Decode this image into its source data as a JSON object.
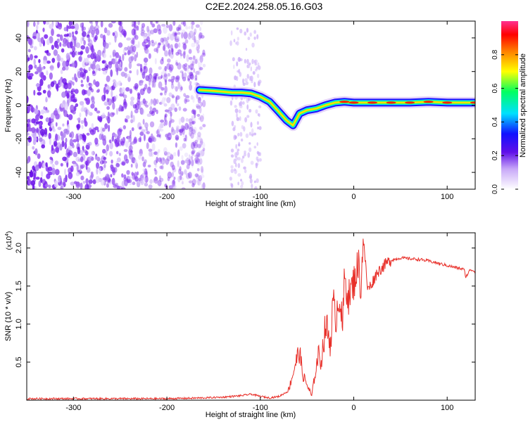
{
  "title": "C2E2.2024.258.05.16.G03",
  "chart_data": [
    {
      "type": "heatmap",
      "name": "spectrogram",
      "xlabel": "Height of straight line (km)",
      "ylabel": "Frequency (Hz)",
      "xlim": [
        -350,
        130
      ],
      "ylim": [
        -50,
        50
      ],
      "xticks": [
        -300,
        -200,
        -100,
        0,
        100
      ],
      "yticks": [
        -40,
        -20,
        0,
        20,
        40
      ],
      "grid": false,
      "colorbar": {
        "label": "Normalized spectral amplitude",
        "range": [
          0,
          1
        ],
        "ticks": [
          "0.0",
          "0.2",
          "0.4",
          "0.6",
          "0.8"
        ],
        "colors": [
          "#ffffff",
          "#d8c0f8",
          "#8020e0",
          "#3010ff",
          "#00ffff",
          "#00ff60",
          "#ffff00",
          "#ff8000",
          "#ff0000",
          "#ff40c0"
        ]
      },
      "noise_region_km": [
        -350,
        -160
      ],
      "noise_column_km": [
        -132,
        -100
      ],
      "signal_track": {
        "x": [
          -165,
          -150,
          -140,
          -130,
          -120,
          -110,
          -100,
          -90,
          -80,
          -72,
          -65,
          -58,
          -50,
          -40,
          -30,
          -20,
          -10,
          0,
          20,
          40,
          60,
          80,
          100,
          130
        ],
        "y": [
          9,
          8.5,
          8,
          7.5,
          7.5,
          7,
          5,
          2,
          -4,
          -9,
          -12,
          -5,
          -3,
          -2,
          0,
          1.5,
          2,
          1.5,
          1.5,
          1.5,
          1.5,
          2,
          1.5,
          1.5
        ]
      }
    },
    {
      "type": "line",
      "name": "snr",
      "xlabel": "Height of straight line (km)",
      "ylabel": "SNR (10 * v/v)",
      "y_multiplier": "(x10",
      "y_multiplier_exp": "4",
      "xlim": [
        -350,
        130
      ],
      "ylim": [
        0,
        2.2
      ],
      "xticks": [
        -300,
        -200,
        -100,
        0,
        100
      ],
      "yticks": [
        0.5,
        1.0,
        1.5,
        2.0
      ],
      "series": [
        {
          "color": "#e8302a",
          "x": [
            -350,
            -300,
            -250,
            -200,
            -160,
            -140,
            -120,
            -110,
            -100,
            -90,
            -80,
            -70,
            -65,
            -62,
            -58,
            -55,
            -50,
            -45,
            -42,
            -38,
            -35,
            -30,
            -25,
            -22,
            -20,
            -15,
            -12,
            -10,
            -5,
            0,
            3,
            5,
            8,
            10,
            15,
            20,
            25,
            30,
            35,
            40,
            50,
            60,
            70,
            80,
            90,
            100,
            110,
            118,
            120,
            125,
            130
          ],
          "y": [
            0.02,
            0.02,
            0.02,
            0.02,
            0.03,
            0.04,
            0.06,
            0.08,
            0.05,
            0.03,
            0.05,
            0.12,
            0.35,
            0.5,
            0.65,
            0.35,
            0.2,
            0.05,
            0.3,
            0.6,
            0.5,
            1.0,
            0.75,
            1.3,
            1.05,
            1.4,
            0.9,
            1.6,
            1.35,
            1.55,
            1.7,
            1.8,
            1.45,
            2.15,
            1.45,
            1.55,
            1.68,
            1.74,
            1.8,
            1.84,
            1.87,
            1.86,
            1.85,
            1.83,
            1.8,
            1.77,
            1.74,
            1.72,
            1.62,
            1.72,
            1.69
          ]
        }
      ]
    }
  ]
}
